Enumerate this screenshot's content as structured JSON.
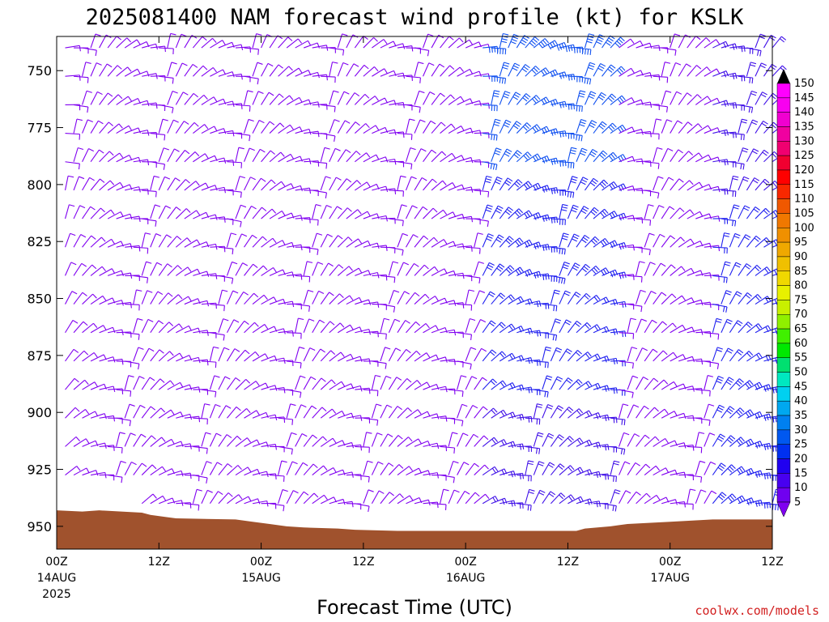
{
  "chart_data": {
    "type": "wind barb time-height",
    "title": "2025081400 NAM forecast wind profile (kt) for KSLK",
    "xlabel": "Forecast Time (UTC)",
    "credit": "coolwx.com/models",
    "x_ticks": [
      {
        "hour": 0,
        "label": "00Z",
        "date": "14AUG",
        "year": "2025"
      },
      {
        "hour": 12,
        "label": "12Z"
      },
      {
        "hour": 24,
        "label": "00Z",
        "date": "15AUG"
      },
      {
        "hour": 36,
        "label": "12Z"
      },
      {
        "hour": 48,
        "label": "00Z",
        "date": "16AUG"
      },
      {
        "hour": 60,
        "label": "12Z"
      },
      {
        "hour": 72,
        "label": "00Z",
        "date": "17AUG"
      },
      {
        "hour": 84,
        "label": "12Z"
      }
    ],
    "y_ticks": [
      750,
      775,
      800,
      825,
      850,
      875,
      900,
      925,
      950
    ],
    "ylim_hpa": [
      735,
      960
    ],
    "xlim_hours": [
      0,
      84
    ],
    "colorbar_labels": [
      150,
      145,
      140,
      135,
      130,
      125,
      120,
      115,
      110,
      105,
      100,
      95,
      90,
      85,
      80,
      75,
      70,
      65,
      60,
      55,
      50,
      45,
      40,
      35,
      30,
      25,
      20,
      15,
      10,
      5
    ],
    "colorbar_colors": [
      "#ff00ff",
      "#f800f0",
      "#f000d0",
      "#f000a0",
      "#f00070",
      "#f00030",
      "#ff0000",
      "#f82800",
      "#f05800",
      "#f07800",
      "#f09000",
      "#f0a800",
      "#f0c000",
      "#f0d800",
      "#e8f000",
      "#c8f000",
      "#90f000",
      "#40f000",
      "#00e800",
      "#00e070",
      "#00e8c0",
      "#00d0f0",
      "#00a8f0",
      "#0080f0",
      "#0058f0",
      "#0030f0",
      "#2000f0",
      "#4800f0",
      "#7000f0",
      "#8000f0"
    ],
    "terrain_color": "#a0522d",
    "surface_pressure": [
      {
        "hour": 0,
        "hpa": 943
      },
      {
        "hour": 3,
        "hpa": 943.5
      },
      {
        "hour": 5,
        "hpa": 943
      },
      {
        "hour": 10,
        "hpa": 944
      },
      {
        "hour": 11,
        "hpa": 945
      },
      {
        "hour": 13,
        "hpa": 946
      },
      {
        "hour": 14,
        "hpa": 946.5
      },
      {
        "hour": 21,
        "hpa": 947
      },
      {
        "hour": 23,
        "hpa": 948
      },
      {
        "hour": 25,
        "hpa": 949
      },
      {
        "hour": 27,
        "hpa": 950
      },
      {
        "hour": 29,
        "hpa": 950.5
      },
      {
        "hour": 33,
        "hpa": 951
      },
      {
        "hour": 35,
        "hpa": 951.5
      },
      {
        "hour": 40,
        "hpa": 952
      },
      {
        "hour": 48,
        "hpa": 952
      },
      {
        "hour": 55,
        "hpa": 952
      },
      {
        "hour": 61,
        "hpa": 952
      },
      {
        "hour": 62,
        "hpa": 951
      },
      {
        "hour": 65,
        "hpa": 950
      },
      {
        "hour": 67,
        "hpa": 949
      },
      {
        "hour": 72,
        "hpa": 948
      },
      {
        "hour": 77,
        "hpa": 947
      },
      {
        "hour": 84,
        "hpa": 947
      }
    ],
    "wind_field": {
      "columns_per_hour": 1,
      "levels_hpa_step": 12.5,
      "summary": [
        {
          "hours": [
            0,
            10
          ],
          "upper_speed_kt": 10,
          "lower_speed_kt": 10
        },
        {
          "hours": [
            16,
            42
          ],
          "upper_speed_kt": 10,
          "lower_speed_kt": 10
        },
        {
          "hours": [
            50,
            65
          ],
          "upper_speed_kt": 35,
          "lower_speed_kt": 15
        },
        {
          "hours": [
            77,
            84
          ],
          "upper_speed_kt": 15,
          "lower_speed_kt": 30
        }
      ]
    }
  }
}
